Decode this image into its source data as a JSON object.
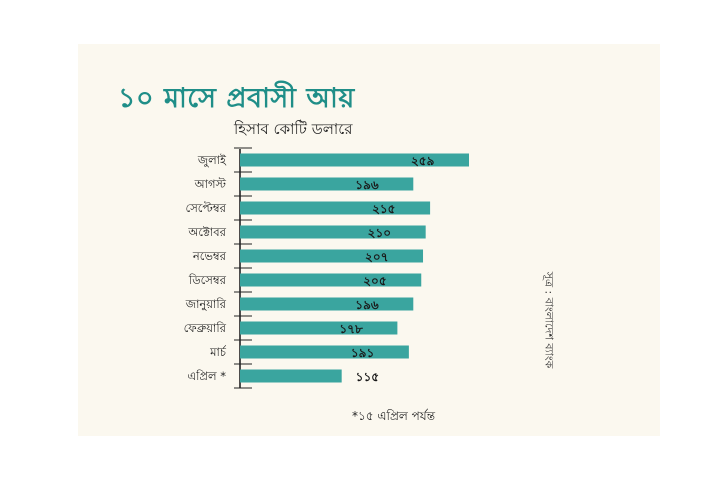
{
  "colors": {
    "bar": "#3aa59f",
    "title": "#1f8e88",
    "axis": "#222222",
    "background": "#fbf8ef"
  },
  "header": {
    "title": "১০ মাসে প্রবাসী আয়",
    "subtitle": "হিসাব কোটি ডলারে"
  },
  "source": "সূত্র : বাংলাদেশ ব্যাংক",
  "footnote": "*১৫ এপ্রিল পর্যন্ত",
  "chart_data": {
    "type": "bar",
    "orientation": "horizontal",
    "title": "১০ মাসে প্রবাসী আয়",
    "subtitle": "হিসাব কোটি ডলারে",
    "categories": [
      "জুলাই",
      "আগস্ট",
      "সেপ্টেম্বর",
      "অক্টোবর",
      "নভেম্বর",
      "ডিসেম্বর",
      "জানুয়ারি",
      "ফেব্রুয়ারি",
      "মার্চ",
      "এপ্রিল *"
    ],
    "values": [
      259,
      196,
      215,
      210,
      207,
      205,
      196,
      178,
      191,
      115
    ],
    "value_labels": [
      "২৫৯",
      "১৯৬",
      "২১৫",
      "২১০",
      "২০৭",
      "২০৫",
      "১৯৬",
      "১৭৮",
      "১৯১",
      "১১৫"
    ],
    "xlim": [
      0,
      259
    ],
    "grid": false,
    "legend": "none"
  }
}
